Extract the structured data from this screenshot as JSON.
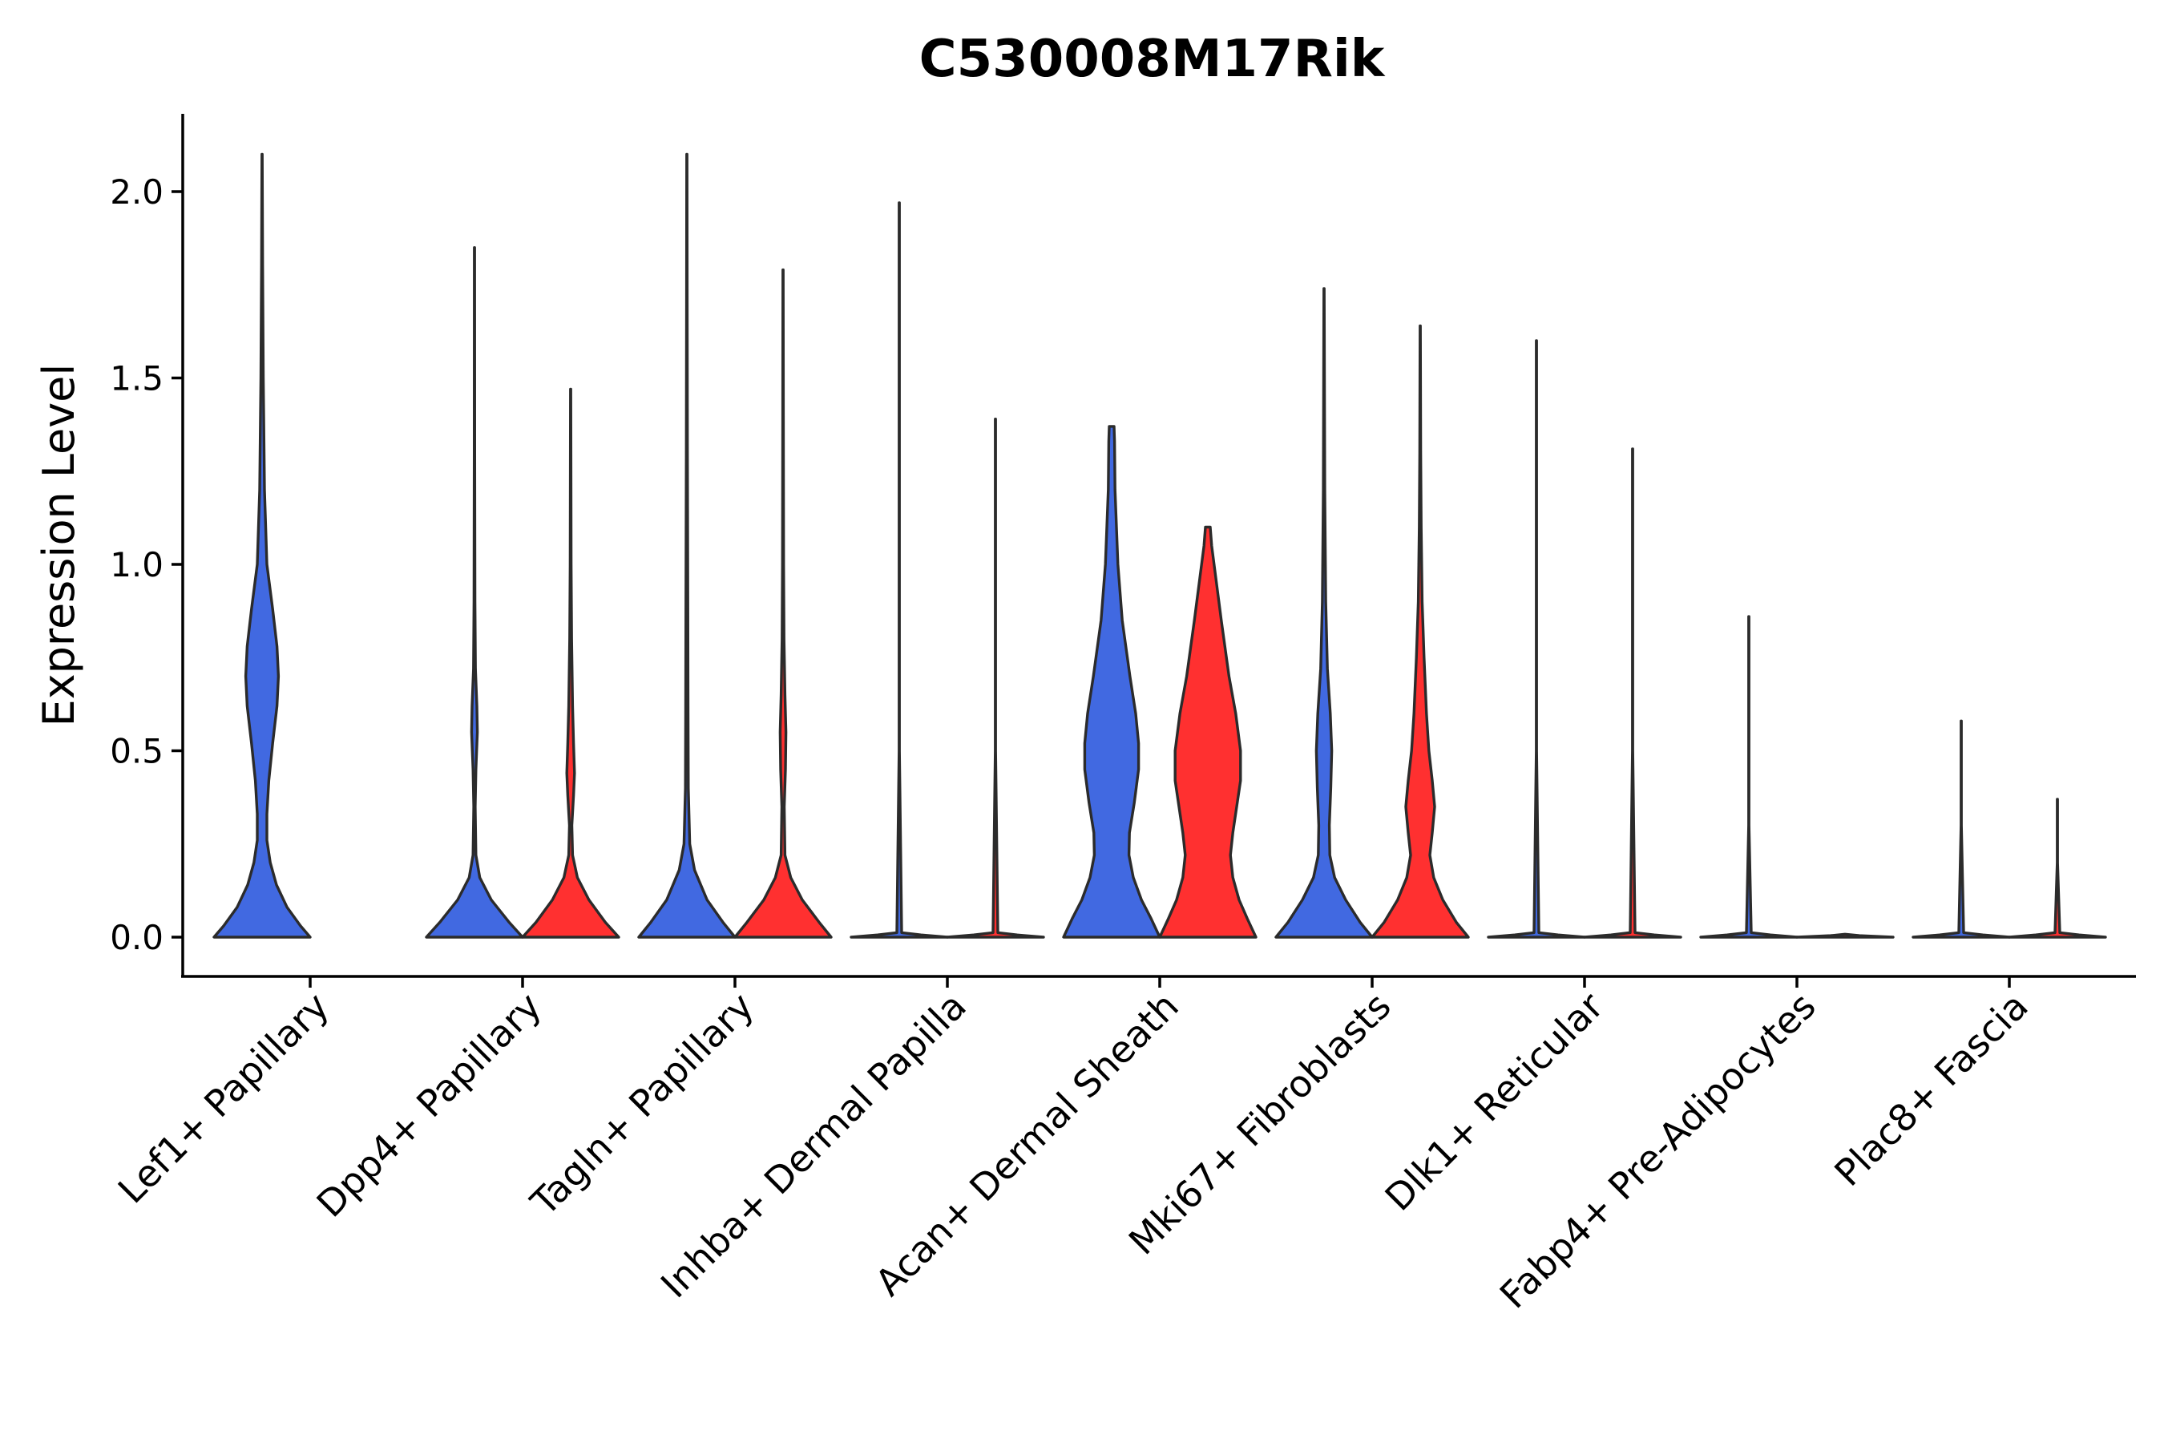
{
  "chart_data": {
    "type": "violin",
    "title": "C530008M17Rik",
    "ylabel": "Expression Level",
    "xlabel": "",
    "ylim": [
      -0.1,
      2.2
    ],
    "yticks": [
      0.0,
      0.5,
      1.0,
      1.5,
      2.0
    ],
    "ytick_labels": [
      "0.0",
      "0.5",
      "1.0",
      "1.5",
      "2.0"
    ],
    "grid": false,
    "legend": "none",
    "colors": {
      "group_a": "#4169E1",
      "group_b": "#FF3030",
      "outline": "#2b2b2b"
    },
    "categories": [
      "Lef1+ Papillary",
      "Dpp4+ Papillary",
      "Tagln+ Papillary",
      "Inhba+ Dermal Papilla",
      "Acan+ Dermal Sheath",
      "Mki67+ Fibroblasts",
      "Dlk1+ Reticular",
      "Fabp4+ Pre-Adipocytes",
      "Plac8+ Fascia"
    ],
    "violins": [
      {
        "category": "Lef1+ Papillary",
        "group": "a",
        "max": 2.1,
        "profile": [
          [
            0,
            1.0
          ],
          [
            0.03,
            0.8
          ],
          [
            0.08,
            0.52
          ],
          [
            0.14,
            0.3
          ],
          [
            0.2,
            0.17
          ],
          [
            0.26,
            0.1
          ],
          [
            0.33,
            0.1
          ],
          [
            0.42,
            0.14
          ],
          [
            0.52,
            0.22
          ],
          [
            0.62,
            0.31
          ],
          [
            0.7,
            0.34
          ],
          [
            0.78,
            0.31
          ],
          [
            0.88,
            0.22
          ],
          [
            1.0,
            0.1
          ],
          [
            1.2,
            0.05
          ],
          [
            1.5,
            0.025
          ],
          [
            1.8,
            0.012
          ],
          [
            2.1,
            0.004
          ]
        ]
      },
      {
        "category": "Dpp4+ Papillary",
        "group": "a",
        "max": 1.85,
        "profile": [
          [
            0,
            1.0
          ],
          [
            0.04,
            0.72
          ],
          [
            0.1,
            0.35
          ],
          [
            0.16,
            0.11
          ],
          [
            0.22,
            0.03
          ],
          [
            0.35,
            0.015
          ],
          [
            0.45,
            0.03
          ],
          [
            0.55,
            0.06
          ],
          [
            0.62,
            0.05
          ],
          [
            0.72,
            0.02
          ],
          [
            0.9,
            0.01
          ],
          [
            1.3,
            0.005
          ],
          [
            1.85,
            0.003
          ]
        ]
      },
      {
        "category": "Dpp4+ Papillary",
        "group": "b",
        "max": 1.47,
        "profile": [
          [
            0,
            1.0
          ],
          [
            0.04,
            0.72
          ],
          [
            0.1,
            0.38
          ],
          [
            0.16,
            0.14
          ],
          [
            0.22,
            0.04
          ],
          [
            0.3,
            0.025
          ],
          [
            0.38,
            0.06
          ],
          [
            0.44,
            0.08
          ],
          [
            0.52,
            0.06
          ],
          [
            0.62,
            0.04
          ],
          [
            0.8,
            0.02
          ],
          [
            1.0,
            0.01
          ],
          [
            1.47,
            0.003
          ]
        ]
      },
      {
        "category": "Tagln+ Papillary",
        "group": "a",
        "max": 2.1,
        "profile": [
          [
            0,
            1.0
          ],
          [
            0.04,
            0.75
          ],
          [
            0.1,
            0.42
          ],
          [
            0.18,
            0.16
          ],
          [
            0.25,
            0.06
          ],
          [
            0.4,
            0.03
          ],
          [
            0.6,
            0.025
          ],
          [
            0.9,
            0.02
          ],
          [
            1.3,
            0.012
          ],
          [
            1.7,
            0.006
          ],
          [
            2.1,
            0.003
          ]
        ]
      },
      {
        "category": "Tagln+ Papillary",
        "group": "b",
        "max": 1.79,
        "profile": [
          [
            0,
            1.0
          ],
          [
            0.04,
            0.75
          ],
          [
            0.1,
            0.4
          ],
          [
            0.16,
            0.16
          ],
          [
            0.22,
            0.04
          ],
          [
            0.35,
            0.025
          ],
          [
            0.45,
            0.05
          ],
          [
            0.55,
            0.06
          ],
          [
            0.65,
            0.04
          ],
          [
            0.8,
            0.02
          ],
          [
            1.0,
            0.012
          ],
          [
            1.4,
            0.006
          ],
          [
            1.79,
            0.003
          ]
        ]
      },
      {
        "category": "Inhba+ Dermal Papilla",
        "group": "a",
        "max": 1.97,
        "profile": [
          [
            0,
            1.0
          ],
          [
            0.006,
            0.45
          ],
          [
            0.012,
            0.05
          ],
          [
            0.5,
            0.003
          ],
          [
            1.97,
            0.003
          ]
        ]
      },
      {
        "category": "Inhba+ Dermal Papilla",
        "group": "b",
        "max": 1.39,
        "profile": [
          [
            0,
            1.0
          ],
          [
            0.006,
            0.45
          ],
          [
            0.012,
            0.05
          ],
          [
            0.5,
            0.003
          ],
          [
            1.39,
            0.003
          ]
        ]
      },
      {
        "category": "Acan+ Dermal Sheath",
        "group": "a",
        "max": 1.37,
        "profile": [
          [
            0,
            1.0
          ],
          [
            0.05,
            0.82
          ],
          [
            0.1,
            0.62
          ],
          [
            0.16,
            0.45
          ],
          [
            0.22,
            0.36
          ],
          [
            0.28,
            0.37
          ],
          [
            0.36,
            0.47
          ],
          [
            0.45,
            0.56
          ],
          [
            0.52,
            0.56
          ],
          [
            0.6,
            0.5
          ],
          [
            0.7,
            0.38
          ],
          [
            0.85,
            0.22
          ],
          [
            1.0,
            0.13
          ],
          [
            1.2,
            0.07
          ],
          [
            1.33,
            0.06
          ],
          [
            1.37,
            0.05
          ]
        ]
      },
      {
        "category": "Acan+ Dermal Sheath",
        "group": "b",
        "max": 1.1,
        "profile": [
          [
            0,
            1.0
          ],
          [
            0.05,
            0.82
          ],
          [
            0.1,
            0.65
          ],
          [
            0.16,
            0.52
          ],
          [
            0.22,
            0.47
          ],
          [
            0.28,
            0.52
          ],
          [
            0.35,
            0.6
          ],
          [
            0.42,
            0.68
          ],
          [
            0.5,
            0.68
          ],
          [
            0.6,
            0.58
          ],
          [
            0.7,
            0.44
          ],
          [
            0.85,
            0.28
          ],
          [
            0.95,
            0.18
          ],
          [
            1.05,
            0.08
          ],
          [
            1.1,
            0.05
          ]
        ]
      },
      {
        "category": "Mki67+ Fibroblasts",
        "group": "a",
        "max": 1.74,
        "profile": [
          [
            0,
            1.0
          ],
          [
            0.04,
            0.75
          ],
          [
            0.1,
            0.45
          ],
          [
            0.16,
            0.22
          ],
          [
            0.22,
            0.12
          ],
          [
            0.3,
            0.11
          ],
          [
            0.4,
            0.14
          ],
          [
            0.5,
            0.16
          ],
          [
            0.6,
            0.13
          ],
          [
            0.72,
            0.07
          ],
          [
            0.9,
            0.035
          ],
          [
            1.2,
            0.015
          ],
          [
            1.5,
            0.008
          ],
          [
            1.74,
            0.004
          ]
        ]
      },
      {
        "category": "Mki67+ Fibroblasts",
        "group": "b",
        "max": 1.64,
        "profile": [
          [
            0,
            1.0
          ],
          [
            0.04,
            0.75
          ],
          [
            0.1,
            0.47
          ],
          [
            0.16,
            0.28
          ],
          [
            0.22,
            0.2
          ],
          [
            0.28,
            0.25
          ],
          [
            0.35,
            0.3
          ],
          [
            0.42,
            0.25
          ],
          [
            0.5,
            0.18
          ],
          [
            0.6,
            0.13
          ],
          [
            0.75,
            0.08
          ],
          [
            0.9,
            0.04
          ],
          [
            1.1,
            0.02
          ],
          [
            1.3,
            0.01
          ],
          [
            1.64,
            0.004
          ]
        ]
      },
      {
        "category": "Dlk1+ Reticular",
        "group": "a",
        "max": 1.6,
        "profile": [
          [
            0,
            1.0
          ],
          [
            0.006,
            0.45
          ],
          [
            0.012,
            0.05
          ],
          [
            0.5,
            0.003
          ],
          [
            1.6,
            0.003
          ]
        ]
      },
      {
        "category": "Dlk1+ Reticular",
        "group": "b",
        "max": 1.31,
        "profile": [
          [
            0,
            1.0
          ],
          [
            0.006,
            0.45
          ],
          [
            0.012,
            0.05
          ],
          [
            0.5,
            0.003
          ],
          [
            1.31,
            0.003
          ]
        ]
      },
      {
        "category": "Fabp4+ Pre-Adipocytes",
        "group": "a",
        "max": 0.86,
        "profile": [
          [
            0,
            1.0
          ],
          [
            0.006,
            0.45
          ],
          [
            0.012,
            0.05
          ],
          [
            0.3,
            0.003
          ],
          [
            0.86,
            0.003
          ]
        ]
      },
      {
        "category": "Fabp4+ Pre-Adipocytes",
        "group": "b",
        "max": 0.0,
        "profile": [
          [
            0,
            1.0
          ],
          [
            0.004,
            0.3
          ],
          [
            0.008,
            0.0
          ]
        ]
      },
      {
        "category": "Plac8+ Fascia",
        "group": "a",
        "max": 0.58,
        "profile": [
          [
            0,
            1.0
          ],
          [
            0.006,
            0.45
          ],
          [
            0.012,
            0.05
          ],
          [
            0.3,
            0.003
          ],
          [
            0.58,
            0.003
          ]
        ]
      },
      {
        "category": "Plac8+ Fascia",
        "group": "b",
        "max": 0.37,
        "profile": [
          [
            0,
            1.0
          ],
          [
            0.006,
            0.45
          ],
          [
            0.012,
            0.05
          ],
          [
            0.2,
            0.003
          ],
          [
            0.37,
            0.003
          ]
        ]
      }
    ]
  }
}
